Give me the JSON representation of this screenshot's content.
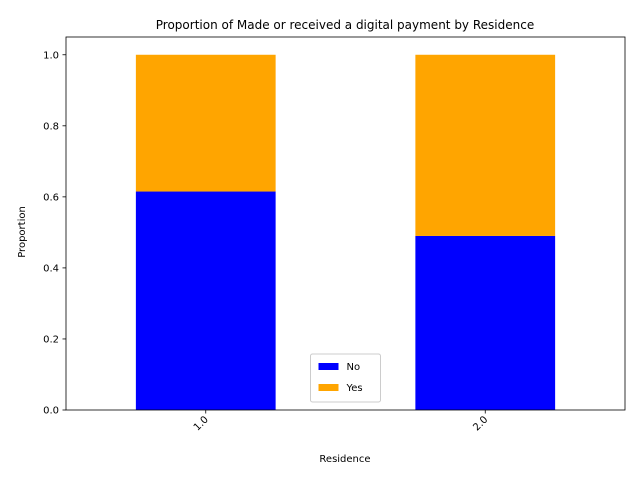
{
  "chart_data": {
    "type": "bar",
    "stacked": true,
    "title": "Proportion of Made or received a digital payment by Residence",
    "xlabel": "Residence",
    "ylabel": "Proportion",
    "categories": [
      "1.0",
      "2.0"
    ],
    "series": [
      {
        "name": "No",
        "color": "#0000ff",
        "values": [
          0.615,
          0.49
        ]
      },
      {
        "name": "Yes",
        "color": "#ffa500",
        "values": [
          0.385,
          0.51
        ]
      }
    ],
    "ylim": [
      0,
      1.05
    ],
    "yticks": [
      "0.0",
      "0.2",
      "0.4",
      "0.6",
      "0.8",
      "1.0"
    ],
    "xtick_rotation": 45,
    "grid": false,
    "legend_position": "lower center"
  }
}
